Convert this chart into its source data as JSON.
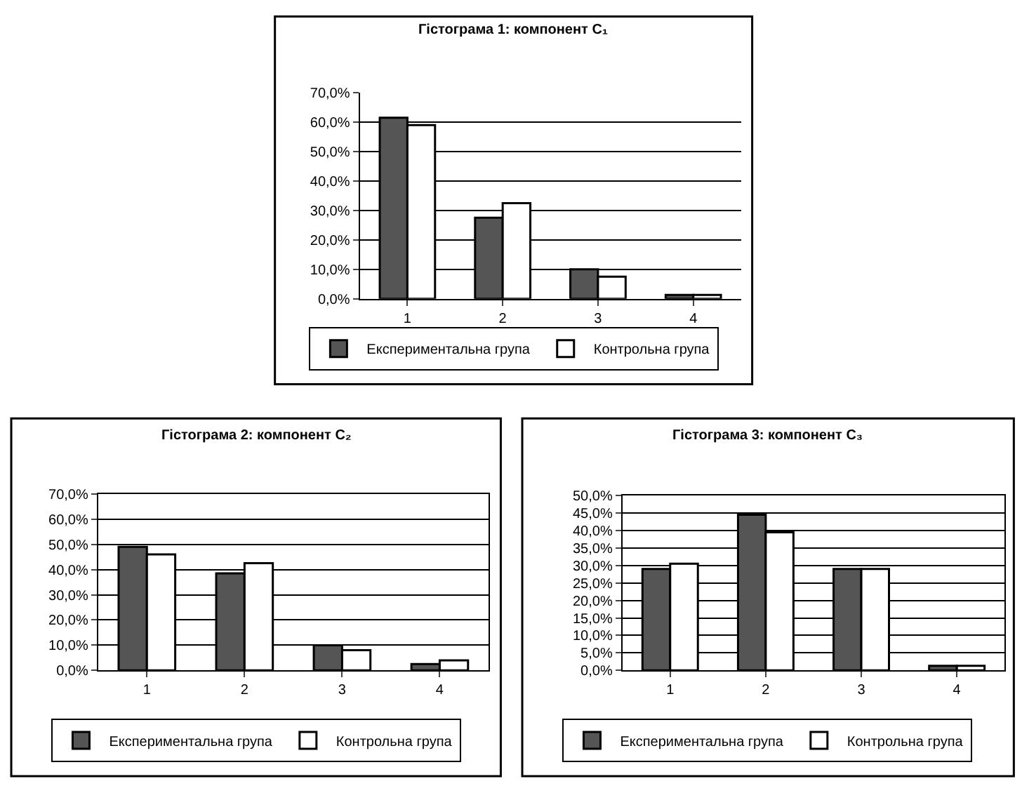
{
  "chart_data": [
    {
      "type": "bar",
      "title": "Гістограма 1: компонент C₁",
      "categories": [
        "1",
        "2",
        "3",
        "4"
      ],
      "series": [
        {
          "name": "Експериментальна група",
          "color": "#555555",
          "values": [
            61.5,
            27.5,
            10,
            1.3
          ]
        },
        {
          "name": "Контрольна група",
          "color": "#ffffff",
          "values": [
            59,
            32.5,
            7.5,
            1.3
          ]
        }
      ],
      "ylim": [
        0,
        70
      ],
      "yticks": [
        {
          "value": 0,
          "label": "0,0%"
        },
        {
          "value": 10,
          "label": "10,0%"
        },
        {
          "value": 20,
          "label": "20,0%"
        },
        {
          "value": 30,
          "label": "30,0%"
        },
        {
          "value": 40,
          "label": "40,0%"
        },
        {
          "value": 50,
          "label": "50,0%"
        },
        {
          "value": 60,
          "label": "60,0%"
        },
        {
          "value": 70,
          "label": "70,0%"
        }
      ],
      "grid": "y",
      "legend": "bottom"
    },
    {
      "type": "bar",
      "title": "Гістограма 2: компонент C₂",
      "categories": [
        "1",
        "2",
        "3",
        "4"
      ],
      "series": [
        {
          "name": "Експериментальна група",
          "color": "#555555",
          "values": [
            49,
            38.5,
            10,
            2.5
          ]
        },
        {
          "name": "Контрольна група",
          "color": "#ffffff",
          "values": [
            46,
            42.5,
            8,
            4
          ]
        }
      ],
      "ylim": [
        0,
        70
      ],
      "yticks": [
        {
          "value": 0,
          "label": "0,0%"
        },
        {
          "value": 10,
          "label": "10,0%"
        },
        {
          "value": 20,
          "label": "20,0%"
        },
        {
          "value": 30,
          "label": "30,0%"
        },
        {
          "value": 40,
          "label": "40,0%"
        },
        {
          "value": 50,
          "label": "50,0%"
        },
        {
          "value": 60,
          "label": "60,0%"
        },
        {
          "value": 70,
          "label": "70,0%"
        }
      ],
      "grid": "y",
      "legend": "bottom"
    },
    {
      "type": "bar",
      "title": "Гістограма 3: компонент C₃",
      "categories": [
        "1",
        "2",
        "3",
        "4"
      ],
      "series": [
        {
          "name": "Експериментальна група",
          "color": "#555555",
          "values": [
            29,
            44.5,
            29,
            1.3
          ]
        },
        {
          "name": "Контрольна група",
          "color": "#ffffff",
          "values": [
            30.5,
            39.5,
            29,
            1.3
          ]
        }
      ],
      "ylim": [
        0,
        50
      ],
      "yticks": [
        {
          "value": 0,
          "label": "0,0%"
        },
        {
          "value": 5,
          "label": "5,0%"
        },
        {
          "value": 10,
          "label": "10,0%"
        },
        {
          "value": 15,
          "label": "15,0%"
        },
        {
          "value": 20,
          "label": "20,0%"
        },
        {
          "value": 25,
          "label": "25,0%"
        },
        {
          "value": 30,
          "label": "30,0%"
        },
        {
          "value": 35,
          "label": "35,0%"
        },
        {
          "value": 40,
          "label": "40,0%"
        },
        {
          "value": 45,
          "label": "45,0%"
        },
        {
          "value": 50,
          "label": "50,0%"
        }
      ],
      "grid": "y",
      "legend": "bottom"
    }
  ]
}
